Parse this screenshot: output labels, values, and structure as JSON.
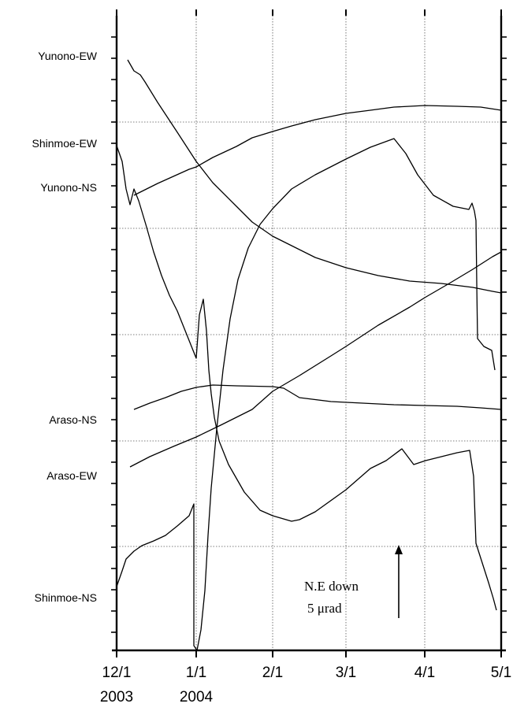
{
  "chart_data": {
    "type": "line",
    "x_ticks": [
      "12/1",
      "1/1",
      "2/1",
      "3/1",
      "4/1",
      "5/1"
    ],
    "year_labels": [
      {
        "text": "2003",
        "date": "12/1"
      },
      {
        "text": "2004",
        "date": "1/1"
      }
    ],
    "x_range": [
      "12/1/2003",
      "5/1/2004"
    ],
    "grid": true,
    "series": [
      {
        "name": "Yunono-EW"
      },
      {
        "name": "Shinmoe-EW"
      },
      {
        "name": "Yunono-NS"
      },
      {
        "name": "Araso-NS"
      },
      {
        "name": "Araso-EW"
      },
      {
        "name": "Shinmoe-NS"
      }
    ],
    "scale_bar": {
      "line1": "N.E down",
      "line2": "5 μrad",
      "date": "3/23"
    }
  }
}
